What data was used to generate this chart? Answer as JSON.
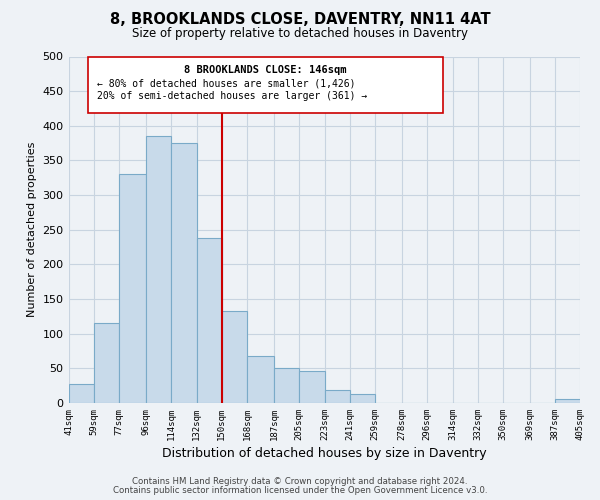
{
  "title": "8, BROOKLANDS CLOSE, DAVENTRY, NN11 4AT",
  "subtitle": "Size of property relative to detached houses in Daventry",
  "xlabel": "Distribution of detached houses by size in Daventry",
  "ylabel": "Number of detached properties",
  "bar_edges": [
    41,
    59,
    77,
    96,
    114,
    132,
    150,
    168,
    187,
    205,
    223,
    241,
    259,
    278,
    296,
    314,
    332,
    350,
    369,
    387,
    405
  ],
  "bar_heights": [
    28,
    116,
    330,
    385,
    375,
    238,
    133,
    68,
    50,
    46,
    18,
    13,
    0,
    0,
    0,
    0,
    0,
    0,
    0,
    5
  ],
  "bar_color": "#c8daea",
  "bar_edgecolor": "#7aaac8",
  "vline_x": 150,
  "vline_color": "#cc0000",
  "annotation_title": "8 BROOKLANDS CLOSE: 146sqm",
  "annotation_line1": "← 80% of detached houses are smaller (1,426)",
  "annotation_line2": "20% of semi-detached houses are larger (361) →",
  "annotation_box_color": "white",
  "annotation_box_edgecolor": "#cc0000",
  "xlim_left": 41,
  "xlim_right": 405,
  "ylim_top": 500,
  "yticks": [
    0,
    50,
    100,
    150,
    200,
    250,
    300,
    350,
    400,
    450,
    500
  ],
  "tick_labels": [
    "41sqm",
    "59sqm",
    "77sqm",
    "96sqm",
    "114sqm",
    "132sqm",
    "150sqm",
    "168sqm",
    "187sqm",
    "205sqm",
    "223sqm",
    "241sqm",
    "259sqm",
    "278sqm",
    "296sqm",
    "314sqm",
    "332sqm",
    "350sqm",
    "369sqm",
    "387sqm",
    "405sqm"
  ],
  "tick_positions": [
    41,
    59,
    77,
    96,
    114,
    132,
    150,
    168,
    187,
    205,
    223,
    241,
    259,
    278,
    296,
    314,
    332,
    350,
    369,
    387,
    405
  ],
  "footer1": "Contains HM Land Registry data © Crown copyright and database right 2024.",
  "footer2": "Contains public sector information licensed under the Open Government Licence v3.0.",
  "grid_color": "#c8d4e0",
  "background_color": "#eef2f6"
}
